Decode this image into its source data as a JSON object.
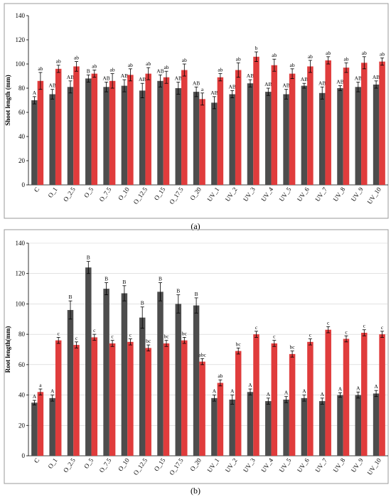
{
  "colors": {
    "series_1": "#4d4d4d",
    "series_2": "#e03c3c",
    "frame": "#9a9a9a"
  },
  "chart_data": [
    {
      "type": "bar",
      "panel_label": "(a)",
      "ylabel": "Shoot length (mm)",
      "xlabel": "",
      "ylim": [
        0,
        140
      ],
      "yticks": [
        0,
        20,
        40,
        60,
        80,
        100,
        120,
        140
      ],
      "grid": false,
      "categories": [
        "C",
        "O_1",
        "O_2.5",
        "O_5",
        "O_7.5",
        "O_10",
        "O_12.5",
        "O_15",
        "O_17.5",
        "O_20",
        "UV_1",
        "UV_2",
        "UV_3",
        "UV_4",
        "UV_5",
        "UV_6",
        "UV_7",
        "UV_8",
        "UV_9",
        "UV_10"
      ],
      "series": [
        {
          "values": [
            70,
            75,
            81,
            88,
            81,
            82,
            78,
            86,
            80,
            77,
            68,
            75,
            84,
            77,
            75,
            82,
            76,
            80,
            81,
            83
          ],
          "errors": [
            3,
            4,
            5,
            3,
            4,
            5,
            6,
            5,
            5,
            4,
            5,
            3,
            3,
            3,
            4,
            2,
            5,
            2,
            4,
            3
          ],
          "labels": [
            "A",
            "AB",
            "AB",
            "B",
            "AB",
            "AB",
            "AB",
            "AB",
            "AB",
            "AB",
            "AB",
            "AB",
            "AB",
            "AB",
            "AB",
            "AB",
            "AB",
            "AB",
            "AB",
            "AB"
          ]
        },
        {
          "values": [
            86,
            96,
            98,
            92,
            86,
            91,
            92,
            89,
            95,
            71,
            89,
            95,
            106,
            99,
            92,
            98,
            103,
            97,
            101,
            102
          ],
          "errors": [
            7,
            3,
            4,
            3,
            6,
            5,
            5,
            5,
            5,
            5,
            3,
            6,
            4,
            5,
            4,
            5,
            3,
            4,
            5,
            3
          ],
          "labels": [
            "ab",
            "ab",
            "ab",
            "ab",
            "ab",
            "ab",
            "ab",
            "ab",
            "ab",
            "a",
            "ab",
            "ab",
            "b",
            "ab",
            "ab",
            "ab",
            "ab",
            "ab",
            "ab",
            "ab"
          ]
        }
      ]
    },
    {
      "type": "bar",
      "panel_label": "(b)",
      "ylabel": "Root length(mm)",
      "xlabel": "",
      "ylim": [
        0,
        140
      ],
      "yticks": [
        0,
        20,
        40,
        60,
        80,
        100,
        120,
        140
      ],
      "grid": true,
      "categories": [
        "C",
        "O_1",
        "O_2.5",
        "O_5",
        "O_7.5",
        "O_10",
        "O_12.5",
        "O_15",
        "O_17.5",
        "O_20",
        "UV_1",
        "UV_2",
        "UV_3",
        "UV_4",
        "UV_5",
        "UV_6",
        "UV_7",
        "UV_8",
        "UV_9",
        "UV_10"
      ],
      "series": [
        {
          "values": [
            35,
            38,
            96,
            124,
            110,
            107,
            91,
            108,
            100,
            99,
            38,
            37,
            42,
            36,
            37,
            38,
            36,
            40,
            40,
            41
          ],
          "errors": [
            1.5,
            2,
            6,
            4,
            4,
            5,
            7,
            6,
            6,
            5,
            2,
            3,
            2,
            2,
            2,
            2,
            2,
            1.5,
            2,
            2
          ],
          "labels": [
            "A",
            "A",
            "B",
            "B",
            "B",
            "B",
            "B",
            "B",
            "B",
            "B",
            "A",
            "A",
            "A",
            "A",
            "A",
            "A",
            "A",
            "A",
            "A",
            "A"
          ]
        },
        {
          "values": [
            42,
            76,
            73,
            78,
            74,
            75,
            71,
            74,
            76,
            62,
            48,
            69,
            80,
            74,
            67,
            75,
            83,
            77,
            81,
            80
          ],
          "errors": [
            2,
            2,
            2,
            2,
            2,
            2,
            2,
            2,
            2,
            2,
            2,
            2,
            2,
            2,
            2,
            2,
            2,
            2,
            2,
            2
          ],
          "labels": [
            "a",
            "c",
            "c",
            "c",
            "c",
            "c",
            "bc",
            "bc",
            "bc",
            "abc",
            "ab",
            "bc",
            "c",
            "c",
            "bc",
            "c",
            "c",
            "c",
            "c",
            "c"
          ]
        }
      ]
    }
  ]
}
